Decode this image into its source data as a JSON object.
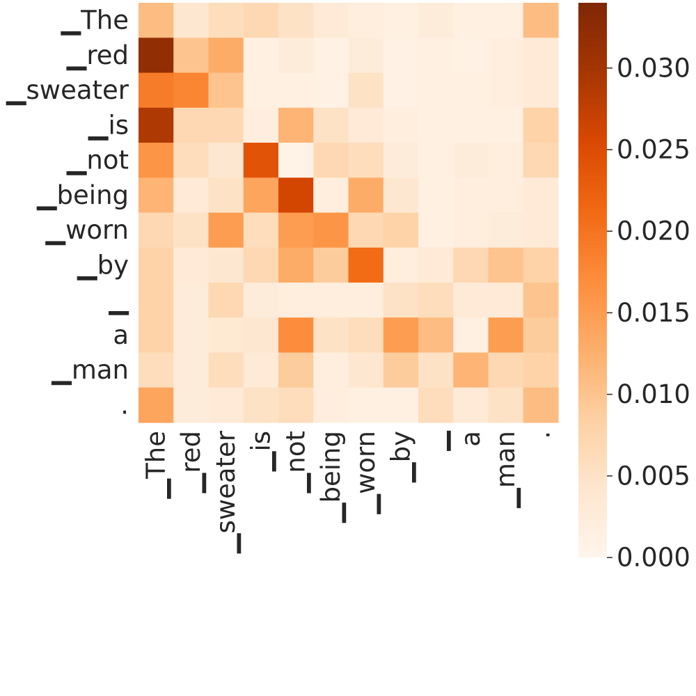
{
  "chart_data": {
    "type": "heatmap",
    "title": "",
    "xlabel": "",
    "ylabel": "",
    "tokens": [
      "▁The",
      "▁red",
      "▁sweater",
      "▁is",
      "▁not",
      "▁being",
      "▁worn",
      "▁by",
      "▁",
      "a",
      "▁man",
      "."
    ],
    "row_labels": [
      "▁The",
      "▁red",
      "▁sweater",
      "▁is",
      "▁not",
      "▁being",
      "▁worn",
      "▁by",
      "▁",
      "a",
      "▁man",
      "."
    ],
    "col_labels": [
      "▁The",
      "▁red",
      "▁sweater",
      "▁is",
      "▁not",
      "▁being",
      "▁worn",
      "▁by",
      "▁",
      "a",
      "▁man",
      "."
    ],
    "values": [
      [
        0.011,
        0.004,
        0.006,
        0.007,
        0.005,
        0.003,
        0.002,
        0.0015,
        0.0025,
        0.0015,
        0.0015,
        0.011
      ],
      [
        0.032,
        0.01,
        0.013,
        0.0015,
        0.0025,
        0.001,
        0.0025,
        0.0012,
        0.0015,
        0.001,
        0.002,
        0.003
      ],
      [
        0.019,
        0.018,
        0.01,
        0.0015,
        0.0015,
        0.001,
        0.005,
        0.001,
        0.0015,
        0.0015,
        0.002,
        0.003
      ],
      [
        0.029,
        0.007,
        0.007,
        0.002,
        0.012,
        0.005,
        0.003,
        0.002,
        0.0015,
        0.0015,
        0.0015,
        0.008
      ],
      [
        0.016,
        0.006,
        0.004,
        0.024,
        0.0005,
        0.007,
        0.006,
        0.0025,
        0.0015,
        0.0025,
        0.002,
        0.007
      ],
      [
        0.012,
        0.003,
        0.005,
        0.014,
        0.026,
        0.002,
        0.013,
        0.004,
        0.0015,
        0.002,
        0.002,
        0.003
      ],
      [
        0.007,
        0.005,
        0.015,
        0.006,
        0.015,
        0.016,
        0.007,
        0.008,
        0.0015,
        0.002,
        0.0025,
        0.003
      ],
      [
        0.008,
        0.003,
        0.004,
        0.007,
        0.013,
        0.009,
        0.021,
        0.002,
        0.003,
        0.007,
        0.01,
        0.008
      ],
      [
        0.008,
        0.0025,
        0.007,
        0.0025,
        0.002,
        0.002,
        0.002,
        0.005,
        0.006,
        0.003,
        0.003,
        0.01
      ],
      [
        0.008,
        0.0025,
        0.0035,
        0.004,
        0.017,
        0.005,
        0.006,
        0.015,
        0.011,
        0.0015,
        0.015,
        0.009
      ],
      [
        0.006,
        0.0025,
        0.006,
        0.003,
        0.009,
        0.002,
        0.004,
        0.009,
        0.005,
        0.012,
        0.007,
        0.008
      ],
      [
        0.014,
        0.0025,
        0.003,
        0.005,
        0.006,
        0.002,
        0.0015,
        0.0015,
        0.006,
        0.003,
        0.005,
        0.011
      ]
    ],
    "colorbar": {
      "min": 0.0,
      "max": 0.034,
      "ticks": [
        0.0,
        0.005,
        0.01,
        0.015,
        0.02,
        0.025,
        0.03
      ],
      "tick_labels": [
        "0.000",
        "0.005",
        "0.010",
        "0.015",
        "0.020",
        "0.025",
        "0.030"
      ]
    },
    "colormap": "Oranges",
    "colormap_stops": [
      "#fff5eb",
      "#fee6ce",
      "#fdd0a2",
      "#fdae6b",
      "#fd8d3c",
      "#f16913",
      "#d94801",
      "#a63603",
      "#7f2704"
    ]
  }
}
